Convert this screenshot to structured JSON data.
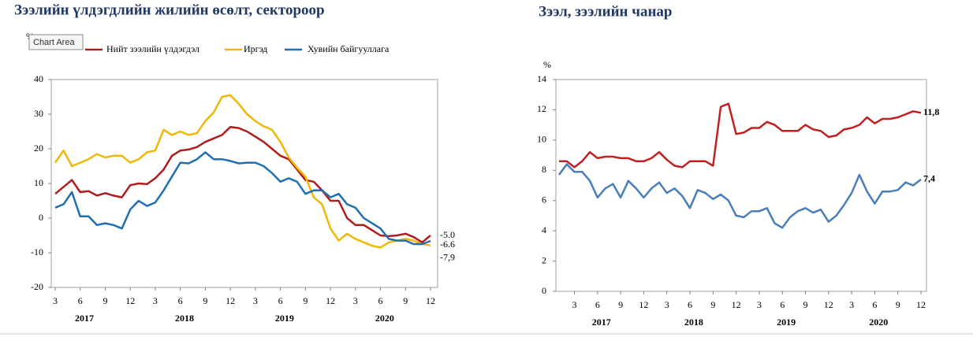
{
  "tooltip": "Chart Area",
  "chart_data": [
    {
      "type": "line",
      "title": "Зээлийн үлдэгдлийн жилийн өсөлт, сектороор",
      "y_label": "%",
      "categories": [
        "3",
        null,
        null,
        "6",
        null,
        null,
        "9",
        null,
        null,
        "12",
        null,
        null,
        "3",
        null,
        null,
        "6",
        null,
        null,
        "9",
        null,
        null,
        "12",
        null,
        null,
        "3",
        null,
        null,
        "6",
        null,
        null,
        "9",
        null,
        null,
        "12",
        null,
        null,
        "3",
        null,
        null,
        "6",
        null,
        null,
        "9",
        null,
        null,
        "12"
      ],
      "years": [
        "2017",
        "2018",
        "2019",
        "2020"
      ],
      "ylim": [
        -20,
        40
      ],
      "yticks": [
        -20,
        -10,
        0,
        10,
        20,
        30,
        40
      ],
      "series": [
        {
          "name": "Нийт зээлийн үлдэгдэл",
          "color": "#b01c1c",
          "values": [
            7,
            9,
            11,
            7.5,
            7.8,
            6.5,
            7.2,
            6.5,
            6,
            9.5,
            10,
            9.8,
            11.5,
            14,
            18,
            19.5,
            19.8,
            20.5,
            22,
            23,
            24,
            26.3,
            26,
            25,
            23.5,
            22,
            20,
            18,
            17,
            14,
            11,
            10.5,
            8,
            5,
            5,
            0,
            -2,
            -2,
            -3.5,
            -5,
            -5.2,
            -5,
            -4.5,
            -5.5,
            -7,
            -5.0
          ],
          "value_labels": [
            null,
            null,
            null,
            null,
            null,
            null,
            null,
            null,
            null,
            null,
            null,
            null,
            null,
            null,
            null,
            null,
            null,
            null,
            null,
            null,
            null,
            null,
            null,
            null,
            null,
            null,
            null,
            null,
            null,
            null,
            null,
            null,
            null,
            null,
            null,
            null,
            null,
            null,
            null,
            null,
            null,
            null,
            null,
            null,
            null,
            "-5.0"
          ]
        },
        {
          "name": "Иргэд",
          "color": "#f2b705",
          "values": [
            16,
            19.5,
            15,
            16,
            17,
            18.5,
            17.5,
            18,
            18,
            16,
            17,
            19,
            19.5,
            25.5,
            24,
            25,
            24,
            24.5,
            28,
            30.5,
            35,
            35.5,
            33,
            30,
            28,
            26.5,
            25.5,
            22,
            17.5,
            14.5,
            12,
            6,
            4,
            -3,
            -6.5,
            -4.5,
            -6,
            -7,
            -8,
            -8.5,
            -7,
            -6.5,
            -6,
            -6.5,
            -7.5,
            -7.9
          ],
          "value_labels": [
            null,
            null,
            null,
            null,
            null,
            null,
            null,
            null,
            null,
            null,
            null,
            null,
            null,
            null,
            null,
            null,
            null,
            null,
            null,
            null,
            null,
            null,
            null,
            null,
            null,
            null,
            null,
            null,
            null,
            null,
            null,
            null,
            null,
            null,
            null,
            null,
            null,
            null,
            null,
            null,
            null,
            null,
            null,
            null,
            null,
            "-7,9"
          ]
        },
        {
          "name": "Хувийн байгууллага",
          "color": "#1f6fb2",
          "values": [
            3,
            4,
            7.5,
            0.5,
            0.5,
            -2,
            -1.5,
            -2,
            -3,
            2.5,
            5,
            3.5,
            4.5,
            8,
            12,
            16,
            15.8,
            17,
            19,
            17,
            17,
            16.5,
            15.8,
            16,
            16,
            15,
            13,
            10.5,
            11.5,
            10.5,
            7,
            8,
            8,
            6,
            7,
            4,
            3,
            0,
            -1.5,
            -3,
            -6,
            -6.5,
            -6.5,
            -7.5,
            -7.5,
            -6.6
          ],
          "value_labels": [
            null,
            null,
            null,
            null,
            null,
            null,
            null,
            null,
            null,
            null,
            null,
            null,
            null,
            null,
            null,
            null,
            null,
            null,
            null,
            null,
            null,
            null,
            null,
            null,
            null,
            null,
            null,
            null,
            null,
            null,
            null,
            null,
            null,
            null,
            null,
            null,
            null,
            null,
            null,
            null,
            null,
            null,
            null,
            null,
            null,
            "-6.6"
          ]
        }
      ]
    },
    {
      "type": "line",
      "title": "Зээл, зээлийн чанар",
      "y_label": "%",
      "categories": [
        null,
        null,
        "3",
        null,
        null,
        "6",
        null,
        null,
        "9",
        null,
        null,
        "12",
        null,
        null,
        "3",
        null,
        null,
        "6",
        null,
        null,
        "9",
        null,
        null,
        "12",
        null,
        null,
        "3",
        null,
        null,
        "6",
        null,
        null,
        "9",
        null,
        null,
        "12",
        null,
        null,
        "3",
        null,
        null,
        "6",
        null,
        null,
        "9",
        null,
        null,
        "12"
      ],
      "years": [
        "2017",
        "2018",
        "2019",
        "2020"
      ],
      "ylim": [
        0,
        14
      ],
      "yticks": [
        0,
        2,
        4,
        6,
        8,
        10,
        12,
        14
      ],
      "series": [
        {
          "color": "#c0201f",
          "values": [
            8.6,
            8.6,
            8.2,
            8.6,
            9.2,
            8.8,
            8.9,
            8.9,
            8.8,
            8.8,
            8.6,
            8.6,
            8.8,
            9.2,
            8.7,
            8.3,
            8.2,
            8.6,
            8.6,
            8.6,
            8.3,
            12.2,
            12.4,
            10.4,
            10.5,
            10.8,
            10.8,
            11.2,
            11.0,
            10.6,
            10.6,
            10.6,
            11.0,
            10.7,
            10.6,
            10.2,
            10.3,
            10.7,
            10.8,
            11.0,
            11.5,
            11.1,
            11.4,
            11.4,
            11.5,
            11.7,
            11.9,
            11.8
          ],
          "value_labels": [
            null,
            null,
            null,
            null,
            null,
            null,
            null,
            null,
            null,
            null,
            null,
            null,
            null,
            null,
            null,
            null,
            null,
            null,
            null,
            null,
            null,
            null,
            null,
            null,
            null,
            null,
            null,
            null,
            null,
            null,
            null,
            null,
            null,
            null,
            null,
            null,
            null,
            null,
            null,
            null,
            null,
            null,
            null,
            null,
            null,
            null,
            null,
            "11,8"
          ]
        },
        {
          "color": "#4a7ebb",
          "values": [
            7.7,
            8.4,
            7.9,
            7.9,
            7.3,
            6.2,
            6.8,
            7.1,
            6.2,
            7.3,
            6.8,
            6.2,
            6.8,
            7.2,
            6.5,
            6.8,
            6.3,
            5.5,
            6.7,
            6.5,
            6.1,
            6.4,
            6.0,
            5.0,
            4.9,
            5.3,
            5.3,
            5.5,
            4.5,
            4.2,
            4.9,
            5.3,
            5.5,
            5.2,
            5.4,
            4.6,
            5.0,
            5.7,
            6.5,
            7.7,
            6.6,
            5.8,
            6.6,
            6.6,
            6.7,
            7.2,
            7.0,
            7.4
          ],
          "value_labels": [
            null,
            null,
            null,
            null,
            null,
            null,
            null,
            null,
            null,
            null,
            null,
            null,
            null,
            null,
            null,
            null,
            null,
            null,
            null,
            null,
            null,
            null,
            null,
            null,
            null,
            null,
            null,
            null,
            null,
            null,
            null,
            null,
            null,
            null,
            null,
            null,
            null,
            null,
            null,
            null,
            null,
            null,
            null,
            null,
            null,
            null,
            null,
            "7,4"
          ]
        }
      ]
    }
  ]
}
